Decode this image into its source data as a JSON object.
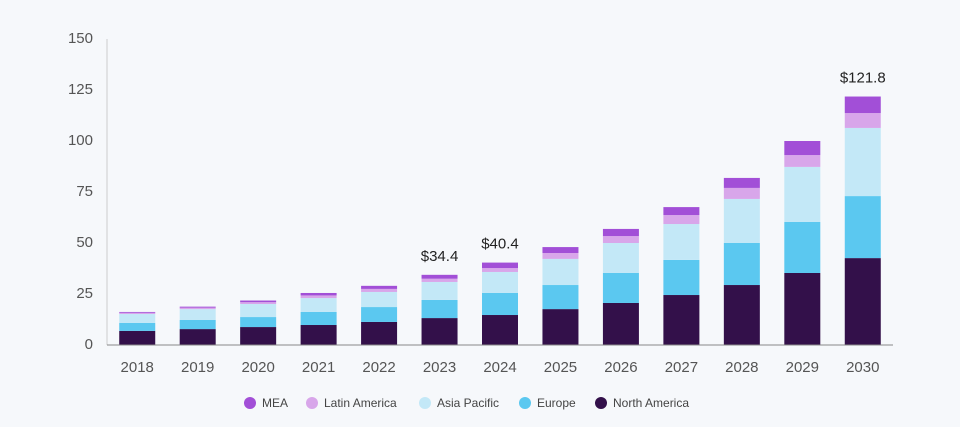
{
  "chart_data": {
    "type": "stacked_bar",
    "categories": [
      "2018",
      "2019",
      "2020",
      "2021",
      "2022",
      "2023",
      "2024",
      "2025",
      "2026",
      "2027",
      "2028",
      "2029",
      "2030"
    ],
    "series": [
      {
        "name": "North America",
        "color": "#33104a",
        "values": [
          6.9,
          7.8,
          8.8,
          9.8,
          11.3,
          13.2,
          14.7,
          17.6,
          20.6,
          24.5,
          29.4,
          35.3,
          42.6
        ]
      },
      {
        "name": "Europe",
        "color": "#5bc8f0",
        "values": [
          3.9,
          4.5,
          4.9,
          6.4,
          7.3,
          8.9,
          10.8,
          11.8,
          14.7,
          17.2,
          20.6,
          25.0,
          30.4
        ]
      },
      {
        "name": "Asia Pacific",
        "color": "#c3e8f7",
        "values": [
          4.4,
          5.3,
          6.4,
          6.8,
          7.4,
          8.8,
          10.3,
          12.8,
          14.7,
          17.6,
          21.6,
          27.0,
          33.4
        ]
      },
      {
        "name": "Latin America",
        "color": "#d8a6ea",
        "values": [
          0.6,
          0.7,
          0.9,
          1.3,
          1.5,
          1.6,
          1.9,
          2.9,
          3.4,
          4.4,
          5.4,
          5.8,
          7.3
        ]
      },
      {
        "name": "MEA",
        "color": "#a24fd7",
        "values": [
          0.4,
          0.5,
          0.8,
          1.2,
          1.5,
          1.9,
          2.7,
          2.9,
          3.5,
          3.9,
          4.9,
          6.9,
          8.1
        ]
      }
    ],
    "totals": [
      null,
      null,
      null,
      null,
      null,
      34.4,
      40.4,
      null,
      null,
      null,
      null,
      null,
      121.8
    ],
    "total_labels": [
      null,
      null,
      null,
      null,
      null,
      "$34.4",
      "$40.4",
      null,
      null,
      null,
      null,
      null,
      "$121.8"
    ],
    "ylim": [
      0,
      150
    ],
    "yticks": [
      0,
      25,
      50,
      75,
      100,
      125,
      150
    ],
    "grid": false
  }
}
